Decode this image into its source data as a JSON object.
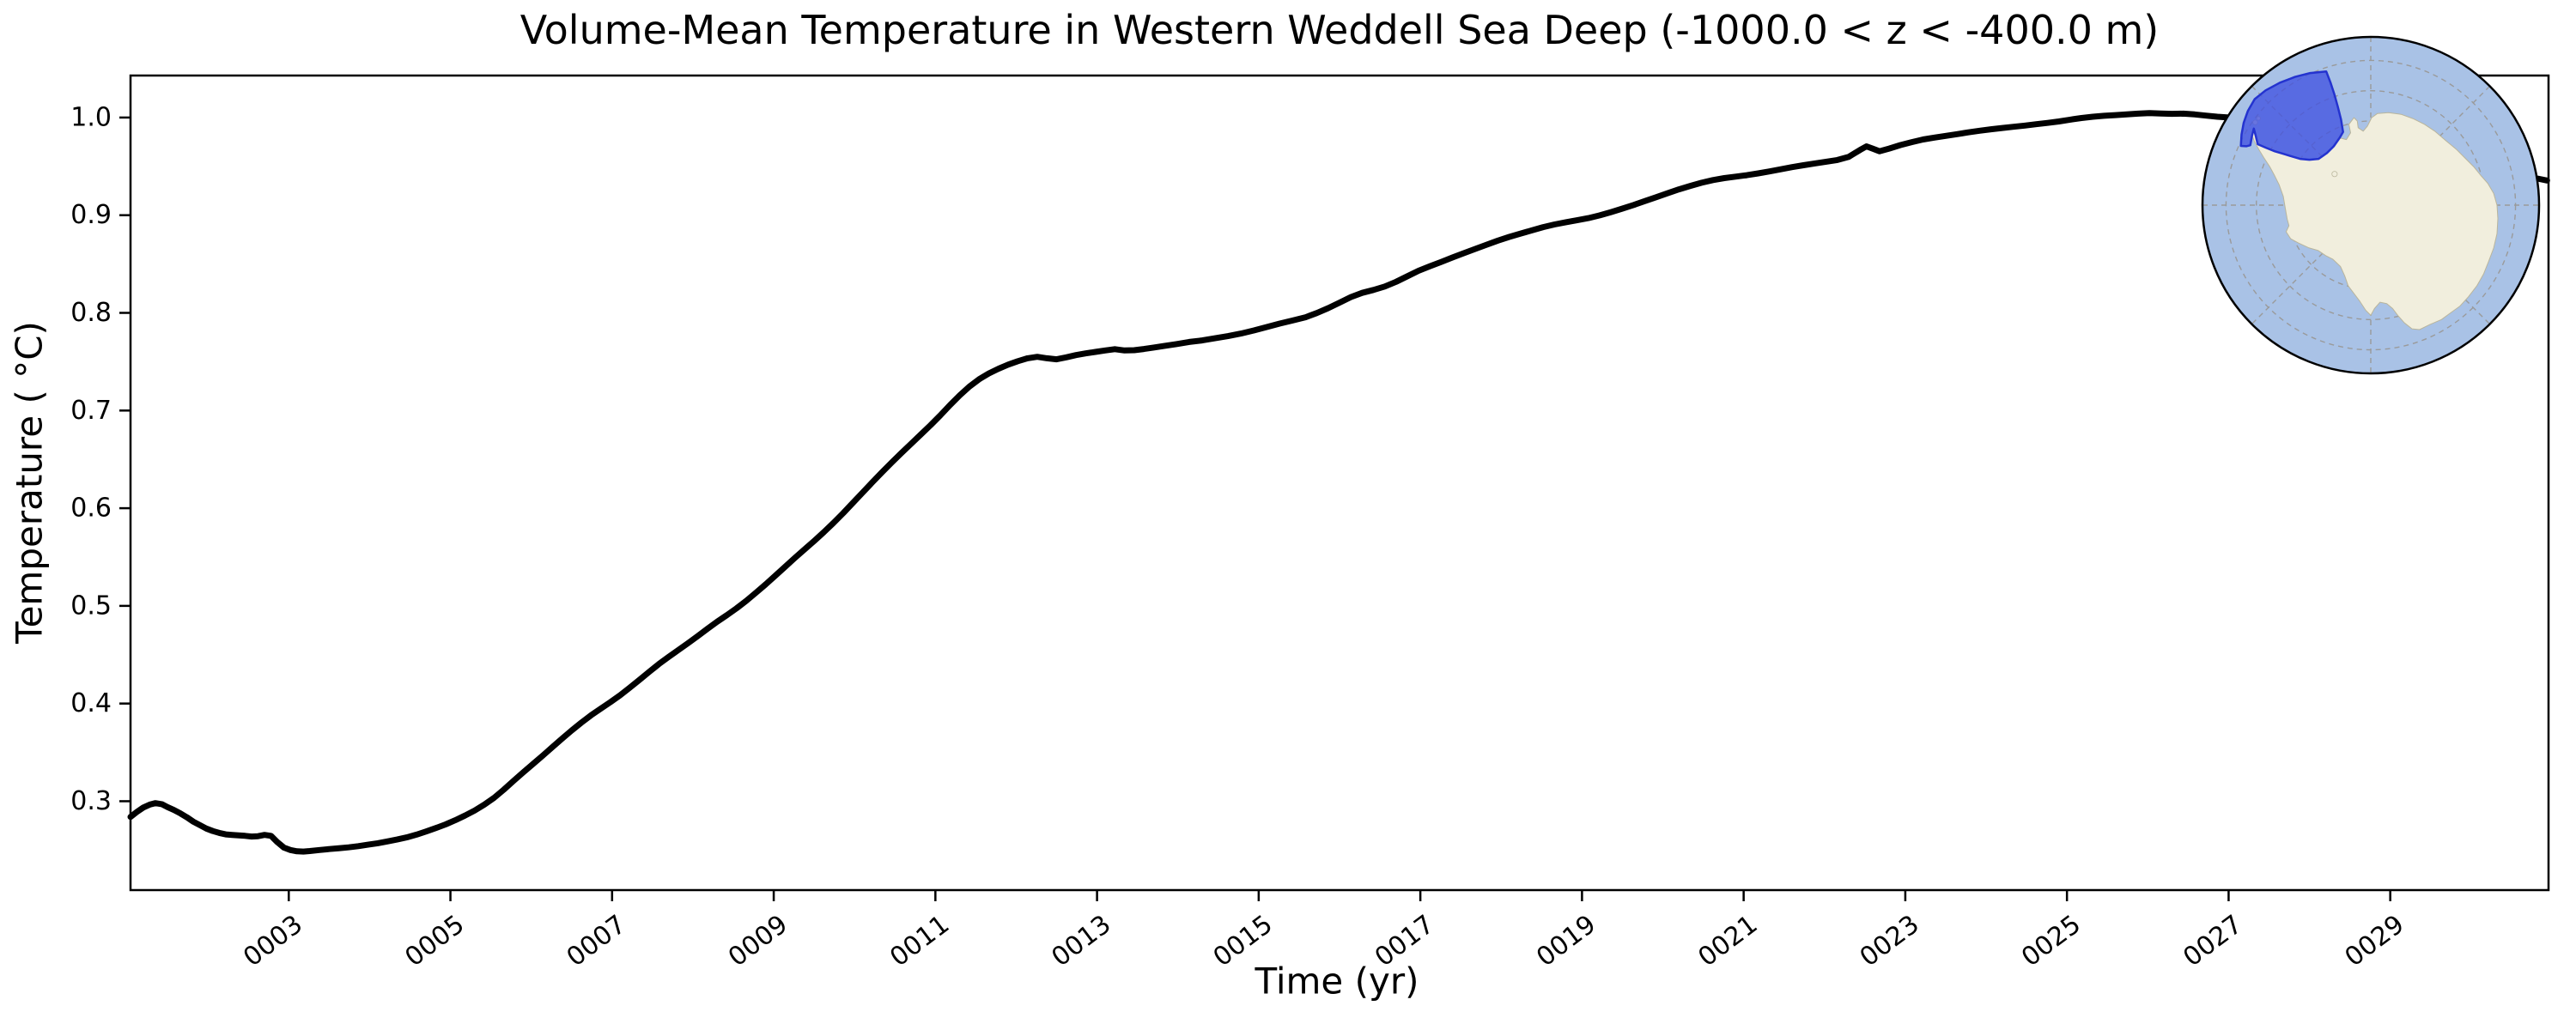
{
  "title": "Volume-Mean Temperature in Western Weddell Sea Deep (-1000.0 < z < -400.0 m)",
  "xlabel": "Time (yr)",
  "ylabel": "Temperature ( °C)",
  "chart_data": {
    "type": "line",
    "title": "Volume-Mean Temperature in Western Weddell Sea Deep (-1000.0 < z < -400.0 m)",
    "xlabel": "Time (yr)",
    "ylabel": "Temperature (°C)",
    "xlim": [
      1.042,
      30.958
    ],
    "ylim": [
      0.209,
      1.043
    ],
    "grid": false,
    "legend": "none",
    "x_tick_labels": [
      "0003",
      "0005",
      "0007",
      "0009",
      "0011",
      "0013",
      "0015",
      "0017",
      "0019",
      "0021",
      "0023",
      "0025",
      "0027",
      "0029"
    ],
    "x_tick_years": [
      3,
      5,
      7,
      9,
      11,
      13,
      15,
      17,
      19,
      21,
      23,
      25,
      27,
      29
    ],
    "x_tick_rotation_deg": -37,
    "y_tick_labels": [
      "1.0",
      "0.9",
      "0.8",
      "0.7",
      "0.6",
      "0.5",
      "0.4",
      "0.3"
    ],
    "y_tick_values": [
      1.0,
      0.9,
      0.8,
      0.7,
      0.6,
      0.5,
      0.4,
      0.3
    ],
    "line_color": "#000000",
    "line_width": 7,
    "series": [
      {
        "name": "volume-mean temperature",
        "points": [
          [
            1.042,
            0.284
          ],
          [
            1.12,
            0.289
          ],
          [
            1.2,
            0.2935
          ],
          [
            1.28,
            0.2965
          ],
          [
            1.35,
            0.298
          ],
          [
            1.43,
            0.297
          ],
          [
            1.5,
            0.294
          ],
          [
            1.58,
            0.291
          ],
          [
            1.66,
            0.2875
          ],
          [
            1.74,
            0.2835
          ],
          [
            1.82,
            0.279
          ],
          [
            1.9,
            0.2755
          ],
          [
            1.98,
            0.272
          ],
          [
            2.06,
            0.2695
          ],
          [
            2.14,
            0.2675
          ],
          [
            2.22,
            0.266
          ],
          [
            2.3,
            0.2655
          ],
          [
            2.38,
            0.265
          ],
          [
            2.46,
            0.2645
          ],
          [
            2.54,
            0.2638
          ],
          [
            2.62,
            0.2642
          ],
          [
            2.7,
            0.2655
          ],
          [
            2.78,
            0.2645
          ],
          [
            2.86,
            0.258
          ],
          [
            2.94,
            0.2525
          ],
          [
            3.02,
            0.25
          ],
          [
            3.1,
            0.2487
          ],
          [
            3.18,
            0.2485
          ],
          [
            3.26,
            0.249
          ],
          [
            3.38,
            0.25
          ],
          [
            3.5,
            0.251
          ],
          [
            3.62,
            0.2518
          ],
          [
            3.74,
            0.2528
          ],
          [
            3.86,
            0.254
          ],
          [
            3.98,
            0.2555
          ],
          [
            4.1,
            0.257
          ],
          [
            4.22,
            0.2588
          ],
          [
            4.34,
            0.2608
          ],
          [
            4.46,
            0.263
          ],
          [
            4.58,
            0.2658
          ],
          [
            4.7,
            0.269
          ],
          [
            4.82,
            0.2725
          ],
          [
            4.94,
            0.2762
          ],
          [
            5.06,
            0.2805
          ],
          [
            5.18,
            0.2853
          ],
          [
            5.3,
            0.2905
          ],
          [
            5.42,
            0.2965
          ],
          [
            5.54,
            0.3035
          ],
          [
            5.66,
            0.3118
          ],
          [
            5.78,
            0.3208
          ],
          [
            5.9,
            0.3295
          ],
          [
            6.02,
            0.338
          ],
          [
            6.14,
            0.3465
          ],
          [
            6.26,
            0.3553
          ],
          [
            6.38,
            0.364
          ],
          [
            6.5,
            0.3725
          ],
          [
            6.62,
            0.3805
          ],
          [
            6.74,
            0.388
          ],
          [
            6.86,
            0.3948
          ],
          [
            6.98,
            0.4015
          ],
          [
            7.1,
            0.4085
          ],
          [
            7.22,
            0.4163
          ],
          [
            7.34,
            0.4243
          ],
          [
            7.46,
            0.4325
          ],
          [
            7.58,
            0.4405
          ],
          [
            7.7,
            0.4478
          ],
          [
            7.82,
            0.4548
          ],
          [
            7.94,
            0.4618
          ],
          [
            8.06,
            0.469
          ],
          [
            8.18,
            0.4765
          ],
          [
            8.3,
            0.4838
          ],
          [
            8.42,
            0.4905
          ],
          [
            8.54,
            0.4975
          ],
          [
            8.66,
            0.5052
          ],
          [
            8.78,
            0.5135
          ],
          [
            8.9,
            0.522
          ],
          [
            9.02,
            0.531
          ],
          [
            9.14,
            0.54
          ],
          [
            9.26,
            0.549
          ],
          [
            9.38,
            0.5578
          ],
          [
            9.5,
            0.5665
          ],
          [
            9.62,
            0.5755
          ],
          [
            9.74,
            0.585
          ],
          [
            9.86,
            0.595
          ],
          [
            9.98,
            0.6055
          ],
          [
            10.1,
            0.616
          ],
          [
            10.22,
            0.6265
          ],
          [
            10.34,
            0.6368
          ],
          [
            10.46,
            0.6468
          ],
          [
            10.58,
            0.6565
          ],
          [
            10.7,
            0.666
          ],
          [
            10.82,
            0.6755
          ],
          [
            10.94,
            0.685
          ],
          [
            11.06,
            0.695
          ],
          [
            11.18,
            0.7055
          ],
          [
            11.3,
            0.7155
          ],
          [
            11.42,
            0.7245
          ],
          [
            11.54,
            0.732
          ],
          [
            11.66,
            0.738
          ],
          [
            11.78,
            0.7428
          ],
          [
            11.9,
            0.747
          ],
          [
            12.02,
            0.7505
          ],
          [
            12.14,
            0.7535
          ],
          [
            12.26,
            0.755
          ],
          [
            12.38,
            0.7535
          ],
          [
            12.5,
            0.7525
          ],
          [
            12.62,
            0.7545
          ],
          [
            12.74,
            0.7568
          ],
          [
            12.86,
            0.7585
          ],
          [
            12.98,
            0.76
          ],
          [
            13.1,
            0.7615
          ],
          [
            13.22,
            0.7628
          ],
          [
            13.34,
            0.7615
          ],
          [
            13.46,
            0.7618
          ],
          [
            13.58,
            0.763
          ],
          [
            13.7,
            0.7645
          ],
          [
            13.82,
            0.766
          ],
          [
            13.98,
            0.768
          ],
          [
            14.14,
            0.7702
          ],
          [
            14.3,
            0.7718
          ],
          [
            14.46,
            0.774
          ],
          [
            14.62,
            0.7762
          ],
          [
            14.78,
            0.7788
          ],
          [
            14.94,
            0.782
          ],
          [
            15.1,
            0.7855
          ],
          [
            15.26,
            0.789
          ],
          [
            15.42,
            0.7922
          ],
          [
            15.58,
            0.7955
          ],
          [
            15.72,
            0.7998
          ],
          [
            15.86,
            0.8048
          ],
          [
            16.0,
            0.8105
          ],
          [
            16.14,
            0.8162
          ],
          [
            16.28,
            0.8205
          ],
          [
            16.42,
            0.8235
          ],
          [
            16.56,
            0.827
          ],
          [
            16.7,
            0.8318
          ],
          [
            16.84,
            0.8375
          ],
          [
            16.98,
            0.8432
          ],
          [
            17.12,
            0.8478
          ],
          [
            17.26,
            0.8522
          ],
          [
            17.4,
            0.8568
          ],
          [
            17.54,
            0.8612
          ],
          [
            17.68,
            0.8655
          ],
          [
            17.82,
            0.8698
          ],
          [
            17.96,
            0.874
          ],
          [
            18.1,
            0.8778
          ],
          [
            18.24,
            0.8812
          ],
          [
            18.38,
            0.8845
          ],
          [
            18.52,
            0.8878
          ],
          [
            18.66,
            0.8905
          ],
          [
            18.8,
            0.8928
          ],
          [
            18.94,
            0.8948
          ],
          [
            19.08,
            0.897
          ],
          [
            19.22,
            0.8998
          ],
          [
            19.36,
            0.9032
          ],
          [
            19.5,
            0.9068
          ],
          [
            19.64,
            0.9105
          ],
          [
            19.78,
            0.9145
          ],
          [
            19.92,
            0.9185
          ],
          [
            20.06,
            0.9225
          ],
          [
            20.2,
            0.9265
          ],
          [
            20.34,
            0.93
          ],
          [
            20.48,
            0.9332
          ],
          [
            20.62,
            0.936
          ],
          [
            20.76,
            0.938
          ],
          [
            20.9,
            0.9395
          ],
          [
            21.04,
            0.941
          ],
          [
            21.18,
            0.9428
          ],
          [
            21.32,
            0.9448
          ],
          [
            21.46,
            0.947
          ],
          [
            21.6,
            0.9492
          ],
          [
            21.74,
            0.9512
          ],
          [
            21.88,
            0.953
          ],
          [
            22.02,
            0.9548
          ],
          [
            22.16,
            0.9565
          ],
          [
            22.3,
            0.9598
          ],
          [
            22.44,
            0.9668
          ],
          [
            22.52,
            0.9705
          ],
          [
            22.6,
            0.968
          ],
          [
            22.68,
            0.9655
          ],
          [
            22.8,
            0.9682
          ],
          [
            22.94,
            0.9718
          ],
          [
            23.08,
            0.9748
          ],
          [
            23.22,
            0.9775
          ],
          [
            23.36,
            0.9795
          ],
          [
            23.5,
            0.9812
          ],
          [
            23.64,
            0.983
          ],
          [
            23.78,
            0.9848
          ],
          [
            23.92,
            0.9865
          ],
          [
            24.06,
            0.988
          ],
          [
            24.2,
            0.9893
          ],
          [
            24.34,
            0.9905
          ],
          [
            24.48,
            0.9918
          ],
          [
            24.62,
            0.9932
          ],
          [
            24.76,
            0.9945
          ],
          [
            24.9,
            0.996
          ],
          [
            25.04,
            0.9978
          ],
          [
            25.18,
            0.9995
          ],
          [
            25.32,
            1.0008
          ],
          [
            25.46,
            1.0018
          ],
          [
            25.6,
            1.0025
          ],
          [
            25.74,
            1.0032
          ],
          [
            25.88,
            1.004
          ],
          [
            26.02,
            1.0045
          ],
          [
            26.16,
            1.0042
          ],
          [
            26.3,
            1.0038
          ],
          [
            26.44,
            1.004
          ],
          [
            26.58,
            1.0032
          ],
          [
            26.72,
            1.002
          ],
          [
            26.86,
            1.0008
          ],
          [
            27.0,
            1.0
          ],
          [
            27.2,
            0.9985
          ],
          [
            27.4,
            0.9962
          ],
          [
            27.6,
            0.9935
          ],
          [
            27.8,
            0.9905
          ],
          [
            28.0,
            0.987
          ],
          [
            28.2,
            0.983
          ],
          [
            28.4,
            0.9785
          ],
          [
            28.6,
            0.974
          ],
          [
            28.8,
            0.9692
          ],
          [
            29.0,
            0.9645
          ],
          [
            29.2,
            0.9598
          ],
          [
            29.4,
            0.9552
          ],
          [
            29.6,
            0.951
          ],
          [
            29.75,
            0.948
          ],
          [
            29.9,
            0.945
          ],
          [
            30.05,
            0.9425
          ],
          [
            30.2,
            0.9405
          ],
          [
            30.35,
            0.939
          ],
          [
            30.5,
            0.9378
          ],
          [
            30.62,
            0.9368
          ],
          [
            30.72,
            0.9395
          ],
          [
            30.82,
            0.9375
          ],
          [
            30.94,
            0.9355
          ]
        ]
      }
    ]
  },
  "inset_map": {
    "description": "South polar stereographic map of Antarctica with the Western Weddell Sea region highlighted",
    "ocean_color": "#a9c2e6",
    "land_color": "#f1eedd",
    "land_edge_color": "#b9b59c",
    "region_fill": "#4152e0",
    "region_border": "#2433cf",
    "region_opacity": 0.78,
    "gridline_color": "#9a9a9a",
    "border_color": "#000000"
  },
  "axis": {
    "tick_color": "#000000",
    "spine_color": "#000000"
  }
}
